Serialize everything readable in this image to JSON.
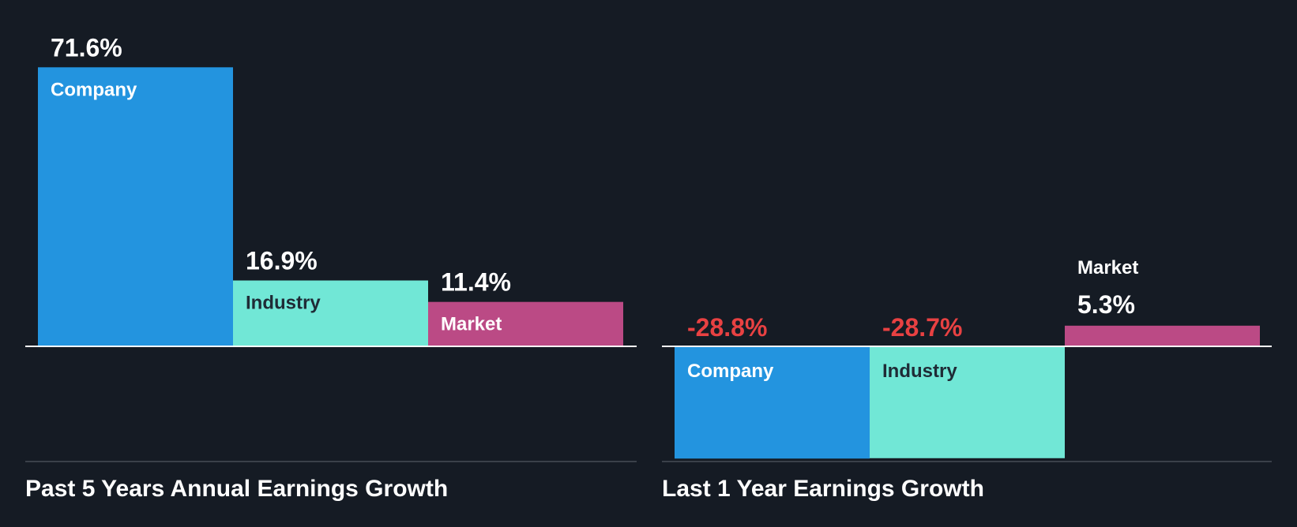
{
  "colors": {
    "background": "#151b24",
    "company": "#2394df",
    "industry": "#71e7d6",
    "market": "#bb4a85",
    "positive_text": "#ffffff",
    "negative_text": "#e84142",
    "bar_label_dark": "#1f2b36",
    "axis": "#ffffff",
    "bottom_rule": "#3a4049"
  },
  "chart_data": [
    {
      "type": "bar",
      "title": "Past 5 Years Annual Earnings Growth",
      "categories": [
        "Company",
        "Industry",
        "Market"
      ],
      "values": [
        71.6,
        16.9,
        11.4
      ],
      "value_labels": [
        "71.6%",
        "16.9%",
        "11.4%"
      ],
      "unit": "%"
    },
    {
      "type": "bar",
      "title": "Last 1 Year Earnings Growth",
      "categories": [
        "Company",
        "Industry",
        "Market"
      ],
      "values": [
        -28.8,
        -28.7,
        5.3
      ],
      "value_labels": [
        "-28.8%",
        "-28.7%",
        "5.3%"
      ],
      "unit": "%"
    }
  ]
}
